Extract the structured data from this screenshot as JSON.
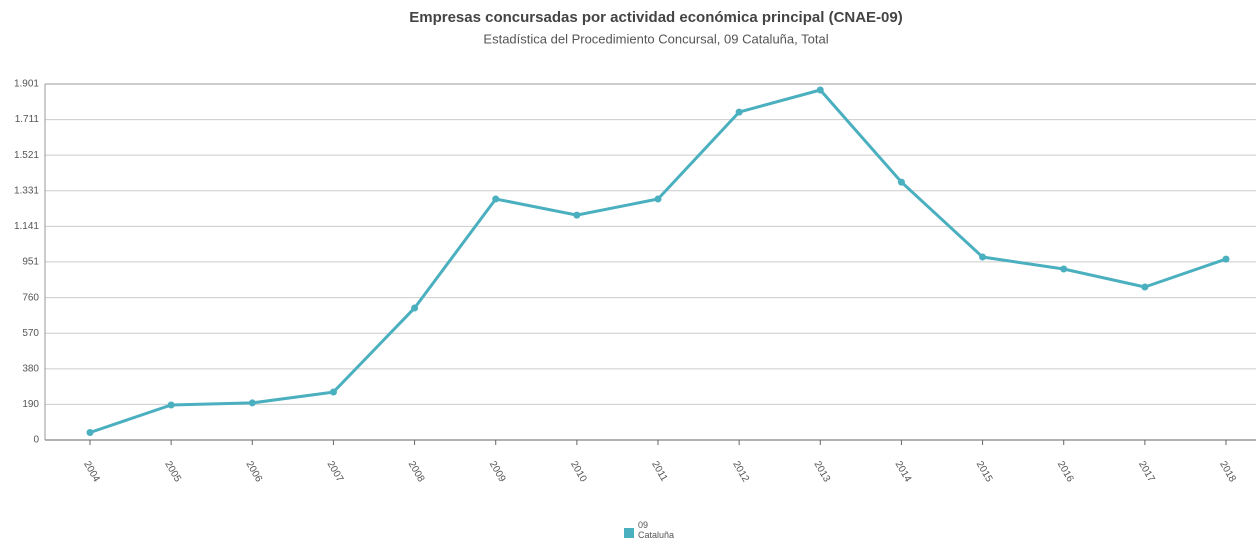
{
  "chart_data": {
    "type": "line",
    "title": "Empresas concursadas por actividad económica principal (CNAE-09)",
    "subtitle": "Estadística del Procedimiento Concursal, 09 Cataluña, Total",
    "categories": [
      "2004",
      "2005",
      "2006",
      "2007",
      "2008",
      "2009",
      "2010",
      "2011",
      "2012",
      "2013",
      "2014",
      "2015",
      "2016",
      "2017",
      "2018"
    ],
    "series": [
      {
        "name": "09 Cataluña",
        "color": "#4aafbf",
        "values": [
          40,
          187,
          198,
          256,
          705,
          1287,
          1201,
          1287,
          1751,
          1869,
          1377,
          977,
          913,
          817,
          966
        ]
      }
    ],
    "ylim": [
      0,
      1901
    ],
    "yticks": [
      0,
      190,
      380,
      570,
      760,
      951,
      {
        "value": 1141,
        "label": "1.141"
      },
      {
        "value": 1331,
        "label": "1.331"
      },
      {
        "value": 1521,
        "label": "1.521"
      },
      {
        "value": 1711,
        "label": "1.711"
      },
      {
        "value": 1901,
        "label": "1.901"
      }
    ],
    "grid": true
  }
}
